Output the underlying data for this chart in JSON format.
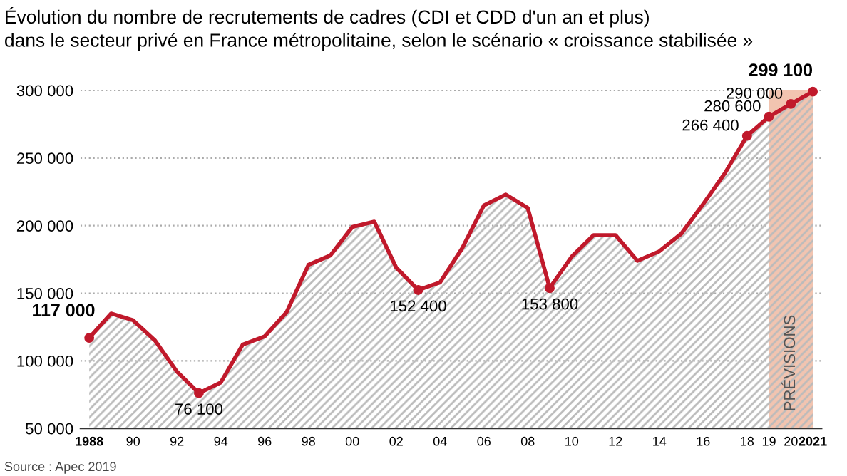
{
  "chart_data": {
    "type": "area",
    "title": "Évolution du nombre de recrutements de cadres (CDI et CDD d'un an et plus)\ndans le secteur privé en France métropolitaine, selon le scénario « croissance stabilisée »",
    "x": [
      1988,
      1989,
      1990,
      1991,
      1992,
      1993,
      1994,
      1995,
      1996,
      1997,
      1998,
      1999,
      2000,
      2001,
      2002,
      2003,
      2004,
      2005,
      2006,
      2007,
      2008,
      2009,
      2010,
      2011,
      2012,
      2013,
      2014,
      2015,
      2016,
      2017,
      2018,
      2019,
      2020,
      2021
    ],
    "series": [
      {
        "color": "#c0192b",
        "values": [
          117000,
          135000,
          130000,
          115000,
          92000,
          76100,
          84000,
          112000,
          118000,
          136000,
          171000,
          178000,
          199000,
          203000,
          169000,
          152400,
          158000,
          183000,
          215000,
          223000,
          213000,
          153800,
          177000,
          193000,
          193000,
          174000,
          181000,
          194000,
          216000,
          239000,
          266400,
          280600,
          290000,
          299100
        ],
        "value_labels": [
          "117 000",
          null,
          null,
          null,
          null,
          "76 100",
          null,
          null,
          null,
          null,
          null,
          null,
          null,
          null,
          null,
          "152 400",
          null,
          null,
          null,
          null,
          null,
          "153 800",
          null,
          null,
          null,
          null,
          null,
          null,
          null,
          null,
          "266 400",
          "280 600",
          "290 000",
          "299 100"
        ]
      }
    ],
    "xlim": [
      1987.6,
      2021.4
    ],
    "xticks": [
      1988,
      {
        "value": 1990,
        "label": "90"
      },
      {
        "value": 1992,
        "label": "92"
      },
      {
        "value": 1994,
        "label": "94"
      },
      {
        "value": 1996,
        "label": "96"
      },
      {
        "value": 1998,
        "label": "98"
      },
      {
        "value": 2000,
        "label": "00"
      },
      {
        "value": 2002,
        "label": "02"
      },
      {
        "value": 2004,
        "label": "04"
      },
      {
        "value": 2006,
        "label": "06"
      },
      {
        "value": 2008,
        "label": "08"
      },
      {
        "value": 2010,
        "label": "10"
      },
      {
        "value": 2012,
        "label": "12"
      },
      {
        "value": 2014,
        "label": "14"
      },
      {
        "value": 2016,
        "label": "16"
      },
      {
        "value": 2018,
        "label": "18"
      },
      {
        "value": 2019,
        "label": "19"
      },
      {
        "value": 2020,
        "label": "20"
      },
      2021
    ],
    "ylim": [
      50000,
      300000
    ],
    "yticks": [
      {
        "value": 50000,
        "label": "50 000"
      },
      {
        "value": 100000,
        "label": "100 000"
      },
      {
        "value": 150000,
        "label": "150 000"
      },
      {
        "value": 200000,
        "label": "200 000"
      },
      {
        "value": 250000,
        "label": "250 000"
      },
      {
        "value": 300000,
        "label": "300 000"
      }
    ],
    "grid": "y",
    "bands": [
      {
        "axis": "x",
        "from": 2019,
        "to": 2021,
        "label": "PRÉVISIONS",
        "color": "#f2c4b0"
      }
    ],
    "annotations": [
      "Source : Apec 2019"
    ]
  }
}
